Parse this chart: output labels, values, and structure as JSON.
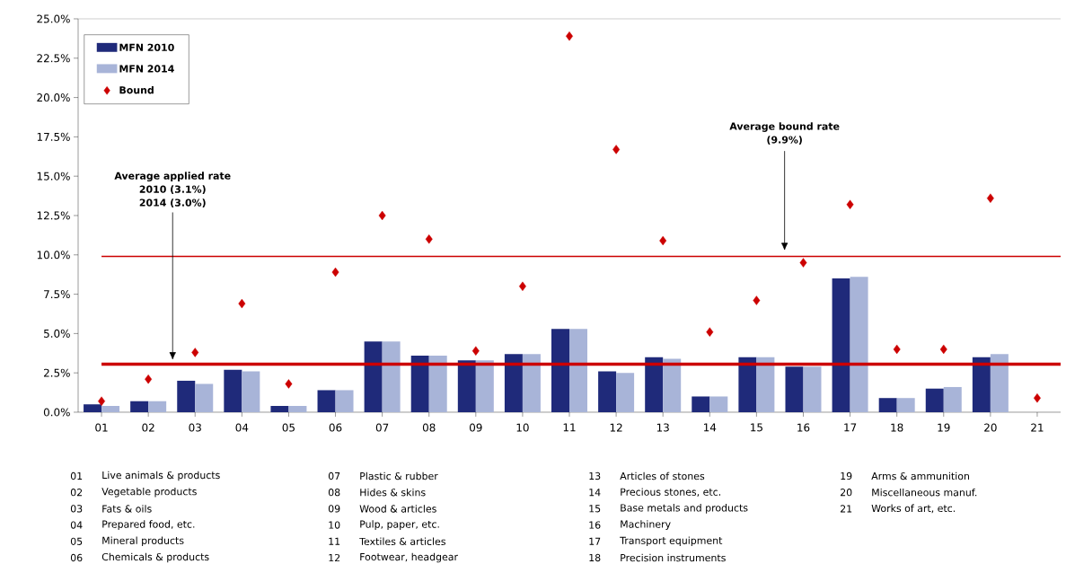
{
  "chart_data": {
    "type": "bar",
    "categories": [
      "01",
      "02",
      "03",
      "04",
      "05",
      "06",
      "07",
      "08",
      "09",
      "10",
      "11",
      "12",
      "13",
      "14",
      "15",
      "16",
      "17",
      "18",
      "19",
      "20",
      "21"
    ],
    "series": [
      {
        "name": "MFN 2010",
        "color": "#1f2a7a",
        "values": [
          0.5,
          0.7,
          2.0,
          2.7,
          0.4,
          1.4,
          4.5,
          3.6,
          3.3,
          3.7,
          5.3,
          2.6,
          3.5,
          1.0,
          3.5,
          2.9,
          8.5,
          0.9,
          1.5,
          3.5,
          null
        ]
      },
      {
        "name": "MFN 2014",
        "color": "#a8b4d8",
        "values": [
          0.4,
          0.7,
          1.8,
          2.6,
          0.4,
          1.4,
          4.5,
          3.6,
          3.3,
          3.7,
          5.3,
          2.5,
          3.4,
          1.0,
          3.5,
          2.9,
          8.6,
          0.9,
          1.6,
          3.7,
          null
        ]
      },
      {
        "name": "Bound",
        "type": "scatter",
        "marker": "diamond",
        "color": "#cc0000",
        "values": [
          0.7,
          2.1,
          3.8,
          6.9,
          1.8,
          8.9,
          12.5,
          11.0,
          3.9,
          8.0,
          23.9,
          16.7,
          10.9,
          5.1,
          7.1,
          9.5,
          13.2,
          4.0,
          4.0,
          13.6,
          0.9
        ]
      }
    ],
    "ylim": [
      0,
      25
    ],
    "yticks": [
      {
        "value": 0,
        "label": "0.0%"
      },
      {
        "value": 2.5,
        "label": "2.5%"
      },
      {
        "value": 5,
        "label": "5.0%"
      },
      {
        "value": 7.5,
        "label": "7.5%"
      },
      {
        "value": 10,
        "label": "10.0%"
      },
      {
        "value": 12.5,
        "label": "12.5%"
      },
      {
        "value": 15,
        "label": "15.0%"
      },
      {
        "value": 17.5,
        "label": "17.5%"
      },
      {
        "value": 20,
        "label": "20.0%"
      },
      {
        "value": 22.5,
        "label": "22.5%"
      },
      {
        "value": 25,
        "label": "25.0%"
      }
    ],
    "ref_lines": [
      {
        "axis": "y",
        "value": 9.9,
        "color": "#cc0000"
      },
      {
        "axis": "y",
        "value": 3.05,
        "color": "#cc0000"
      }
    ],
    "legend": "top left",
    "annotations": [
      "Average applied rate",
      "2010 (3.1%)",
      "2014 (3.0%)",
      "Average bound rate",
      "(9.9%)",
      "Live animals & products",
      "Vegetable products",
      "Fats & oils",
      "Prepared food, etc.",
      "Mineral products",
      "Chemicals & products",
      "Plastic & rubber",
      "Hides & skins",
      "Wood & articles",
      "Pulp, paper, etc.",
      "Textiles & articles",
      "Footwear, headgear",
      "Articles of stones",
      "Precious stones, etc.",
      "Base metals and products",
      "Machinery",
      "Transport equipment",
      "Precision instruments",
      "Arms & ammunition",
      "Miscellaneous manuf.",
      "Works of art, etc."
    ]
  }
}
